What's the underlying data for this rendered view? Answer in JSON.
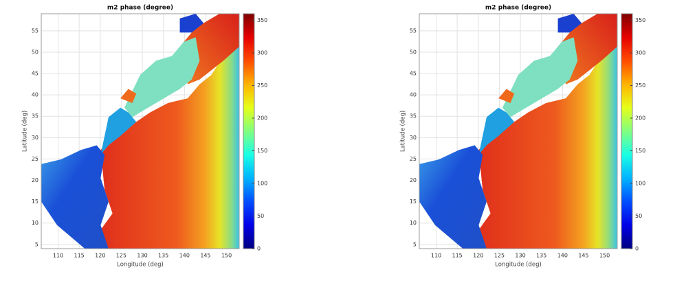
{
  "chart_data": [
    {
      "type": "heatmap",
      "title": "m2 phase (degree)",
      "x_label": "Longitude (deg)",
      "y_label": "Latitude (deg)",
      "xlim": [
        106,
        153
      ],
      "ylim": [
        4,
        59
      ],
      "xticks": [
        110,
        115,
        120,
        125,
        130,
        135,
        140,
        145,
        150
      ],
      "yticks": [
        5,
        10,
        15,
        20,
        25,
        30,
        35,
        40,
        45,
        50,
        55
      ],
      "grid": true,
      "colormap": "jet",
      "clim": [
        0,
        360
      ],
      "cticks": [
        0,
        50,
        100,
        150,
        200,
        250,
        300,
        350
      ]
    },
    {
      "type": "heatmap",
      "title": "m2 phase (degree)",
      "x_label": "Longitude (deg)",
      "y_label": "Latitude (deg)",
      "xlim": [
        106,
        153
      ],
      "ylim": [
        4,
        59
      ],
      "xticks": [
        110,
        115,
        120,
        125,
        130,
        135,
        140,
        145,
        150
      ],
      "yticks": [
        5,
        10,
        15,
        20,
        25,
        30,
        35,
        40,
        45,
        50,
        55
      ],
      "grid": true,
      "colormap": "jet",
      "clim": [
        0,
        360
      ],
      "cticks": [
        0,
        50,
        100,
        150,
        200,
        250,
        300,
        350
      ]
    }
  ]
}
